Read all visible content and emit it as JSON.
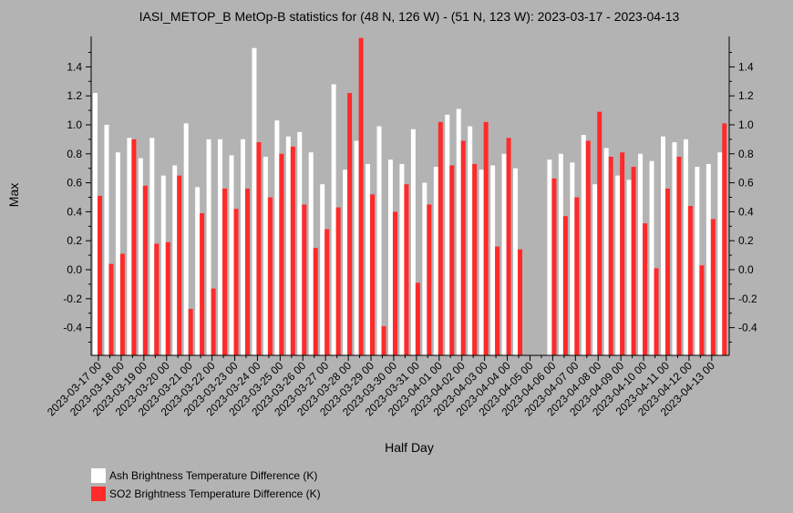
{
  "chart_data": {
    "type": "bar",
    "title": "IASI_METOP_B MetOp-B statistics for (48 N, 126 W) - (51 N, 123 W): 2023-03-17 - 2023-04-13",
    "xlabel": "Half Day",
    "ylabel": "Max",
    "ylim": [
      -0.6,
      1.6
    ],
    "yticks": [
      -0.4,
      -0.2,
      0.0,
      0.2,
      0.4,
      0.6,
      0.8,
      1.0,
      1.2,
      1.4
    ],
    "ytick_labels": [
      "-0.4",
      "-0.2",
      "0.0",
      "0.2",
      "0.4",
      "0.6",
      "0.8",
      "1.0",
      "1.2",
      "1.4"
    ],
    "grid": false,
    "legend_position": "bottom-left",
    "xtick_labels": [
      "2023-03-17 00",
      "2023-03-18 00",
      "2023-03-19 00",
      "2023-03-20 00",
      "2023-03-21 00",
      "2023-03-22 00",
      "2023-03-23 00",
      "2023-03-24 00",
      "2023-03-25 00",
      "2023-03-26 00",
      "2023-03-27 00",
      "2023-03-28 00",
      "2023-03-29 00",
      "2023-03-30 00",
      "2023-03-31 00",
      "2023-04-01 00",
      "2023-04-02 00",
      "2023-04-03 00",
      "2023-04-04 00",
      "2023-04-05 00",
      "2023-04-06 00",
      "2023-04-07 00",
      "2023-04-08 00",
      "2023-04-09 00",
      "2023-04-10 00",
      "2023-04-11 00",
      "2023-04-12 00",
      "2023-04-13 00"
    ],
    "series": [
      {
        "name": "Ash Brightness Temperature Difference (K)",
        "color": "#ffffff",
        "values": [
          1.22,
          1.0,
          0.81,
          0.91,
          0.77,
          0.91,
          0.65,
          0.72,
          1.01,
          0.57,
          0.9,
          0.9,
          0.79,
          0.9,
          1.53,
          0.78,
          1.03,
          0.92,
          0.95,
          0.81,
          0.59,
          1.28,
          0.69,
          0.89,
          0.73,
          0.99,
          0.76,
          0.73,
          0.97,
          0.6,
          0.71,
          1.07,
          1.11,
          0.99,
          0.69,
          0.72,
          0.8,
          0.7,
          null,
          null,
          0.76,
          0.8,
          0.74,
          0.93,
          0.59,
          0.84,
          0.65,
          0.62,
          0.8,
          0.75,
          0.92,
          0.88,
          0.9,
          0.71,
          0.73,
          0.81
        ]
      },
      {
        "name": "SO2 Brightness Temperature Difference (K)",
        "color": "#ff2a2a",
        "values": [
          0.51,
          0.04,
          0.11,
          0.9,
          0.58,
          0.18,
          0.19,
          0.65,
          -0.27,
          0.39,
          -0.13,
          0.56,
          0.42,
          0.56,
          0.88,
          0.5,
          0.8,
          0.85,
          0.45,
          0.15,
          0.28,
          0.43,
          1.22,
          1.6,
          0.52,
          -0.39,
          0.4,
          0.59,
          -0.09,
          0.45,
          1.02,
          0.72,
          0.89,
          0.73,
          1.02,
          0.16,
          0.91,
          0.14,
          null,
          null,
          0.63,
          0.37,
          0.5,
          0.89,
          1.09,
          0.78,
          0.81,
          0.71,
          0.32,
          0.01,
          0.56,
          0.78,
          0.44,
          0.03,
          0.35,
          1.01
        ]
      }
    ]
  }
}
